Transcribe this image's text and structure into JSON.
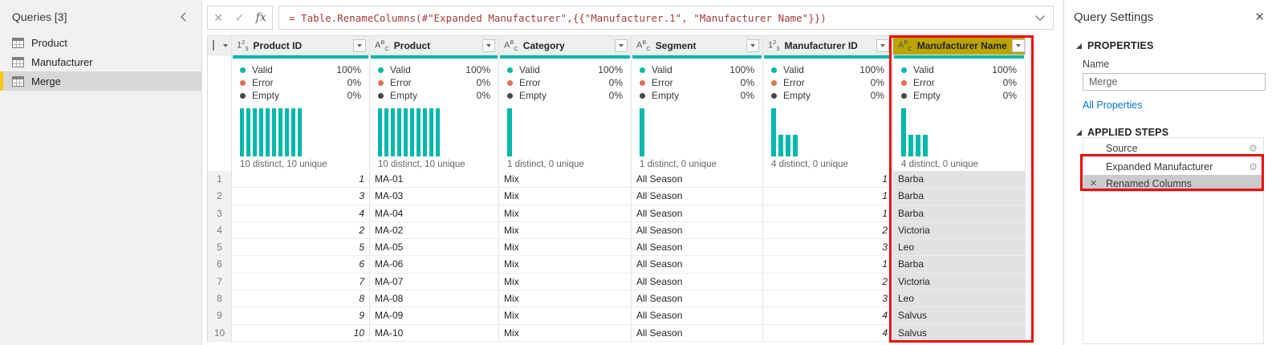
{
  "colors": {
    "accent_teal": "#01B8AA",
    "error_red": "#E66C57",
    "empty_gray": "#474747",
    "highlight_red": "#EE0A0A",
    "selected_header_olive": "#BCA400",
    "sidebar_accent_yellow": "#F2C80F",
    "link_blue": "#0078D4"
  },
  "sidebar": {
    "title": "Queries [3]",
    "items": [
      {
        "label": "Product",
        "selected": false
      },
      {
        "label": "Manufacturer",
        "selected": false
      },
      {
        "label": "Merge",
        "selected": true
      }
    ]
  },
  "formula_bar": {
    "cancel_icon": "✕",
    "check_icon": "✓",
    "fx_icon": "fx",
    "formula": "= Table.RenameColumns(#\"Expanded Manufacturer\",{{\"Manufacturer.1\", \"Manufacturer Name\"}})"
  },
  "table": {
    "legend_labels": {
      "valid": "Valid",
      "error": "Error",
      "empty": "Empty"
    },
    "row_numbers": [
      "1",
      "2",
      "3",
      "4",
      "5",
      "6",
      "7",
      "8",
      "9",
      "10"
    ],
    "columns": [
      {
        "name": "Product ID",
        "type_icon": {
          "base": "1",
          "sup": "2",
          "sub": "3"
        },
        "selected": false,
        "align": "right",
        "valid": "100%",
        "error": "0%",
        "empty": "0%",
        "distinct": "10 distinct, 10 unique",
        "histogram": [
          1,
          1,
          1,
          1,
          1,
          1,
          1,
          1,
          1,
          1
        ],
        "cells": [
          "1",
          "3",
          "4",
          "2",
          "5",
          "6",
          "7",
          "8",
          "9",
          "10"
        ]
      },
      {
        "name": "Product",
        "type_icon": {
          "base": "A",
          "sup": "B",
          "sub": "C"
        },
        "selected": false,
        "align": "left",
        "valid": "100%",
        "error": "0%",
        "empty": "0%",
        "distinct": "10 distinct, 10 unique",
        "histogram": [
          1,
          1,
          1,
          1,
          1,
          1,
          1,
          1,
          1,
          1
        ],
        "cells": [
          "MA-01",
          "MA-03",
          "MA-04",
          "MA-02",
          "MA-05",
          "MA-06",
          "MA-07",
          "MA-08",
          "MA-09",
          "MA-10"
        ]
      },
      {
        "name": "Category",
        "type_icon": {
          "base": "A",
          "sup": "B",
          "sub": "C"
        },
        "selected": false,
        "align": "left",
        "valid": "100%",
        "error": "0%",
        "empty": "0%",
        "distinct": "1 distinct, 0 unique",
        "histogram": [
          1
        ],
        "cells": [
          "Mix",
          "Mix",
          "Mix",
          "Mix",
          "Mix",
          "Mix",
          "Mix",
          "Mix",
          "Mix",
          "Mix"
        ]
      },
      {
        "name": "Segment",
        "type_icon": {
          "base": "A",
          "sup": "B",
          "sub": "C"
        },
        "selected": false,
        "align": "left",
        "valid": "100%",
        "error": "0%",
        "empty": "0%",
        "distinct": "1 distinct, 0 unique",
        "histogram": [
          1
        ],
        "cells": [
          "All Season",
          "All Season",
          "All Season",
          "All Season",
          "All Season",
          "All Season",
          "All Season",
          "All Season",
          "All Season",
          "All Season"
        ]
      },
      {
        "name": "Manufacturer ID",
        "type_icon": {
          "base": "1",
          "sup": "2",
          "sub": "3"
        },
        "selected": false,
        "align": "right",
        "valid": "100%",
        "error": "0%",
        "empty": "0%",
        "distinct": "4 distinct, 0 unique",
        "histogram": [
          1,
          0.45,
          0.45,
          0.45
        ],
        "cells": [
          "1",
          "1",
          "1",
          "2",
          "3",
          "1",
          "2",
          "3",
          "4",
          "4"
        ]
      },
      {
        "name": "Manufacturer Name",
        "type_icon": {
          "base": "A",
          "sup": "B",
          "sub": "C"
        },
        "selected": true,
        "align": "left",
        "valid": "100%",
        "error": "0%",
        "empty": "0%",
        "distinct": "4 distinct, 0 unique",
        "histogram": [
          1,
          0.45,
          0.45,
          0.45
        ],
        "cells": [
          "Barba",
          "Barba",
          "Barba",
          "Victoria",
          "Leo",
          "Barba",
          "Victoria",
          "Leo",
          "Salvus",
          "Salvus"
        ]
      }
    ]
  },
  "query_settings": {
    "title": "Query Settings",
    "close_icon": "✕",
    "properties": {
      "header": "PROPERTIES",
      "name_label": "Name",
      "name_value": "Merge",
      "all_properties": "All Properties"
    },
    "applied_steps": {
      "header": "APPLIED STEPS",
      "delete_icon": "✕",
      "gear_icon": "⚙",
      "steps": [
        {
          "label": "Source",
          "gear": true,
          "removable": false,
          "selected": false
        },
        {
          "label": "Expanded Manufacturer",
          "gear": true,
          "removable": false,
          "selected": false
        },
        {
          "label": "Renamed Columns",
          "gear": false,
          "removable": true,
          "selected": true
        }
      ]
    }
  }
}
